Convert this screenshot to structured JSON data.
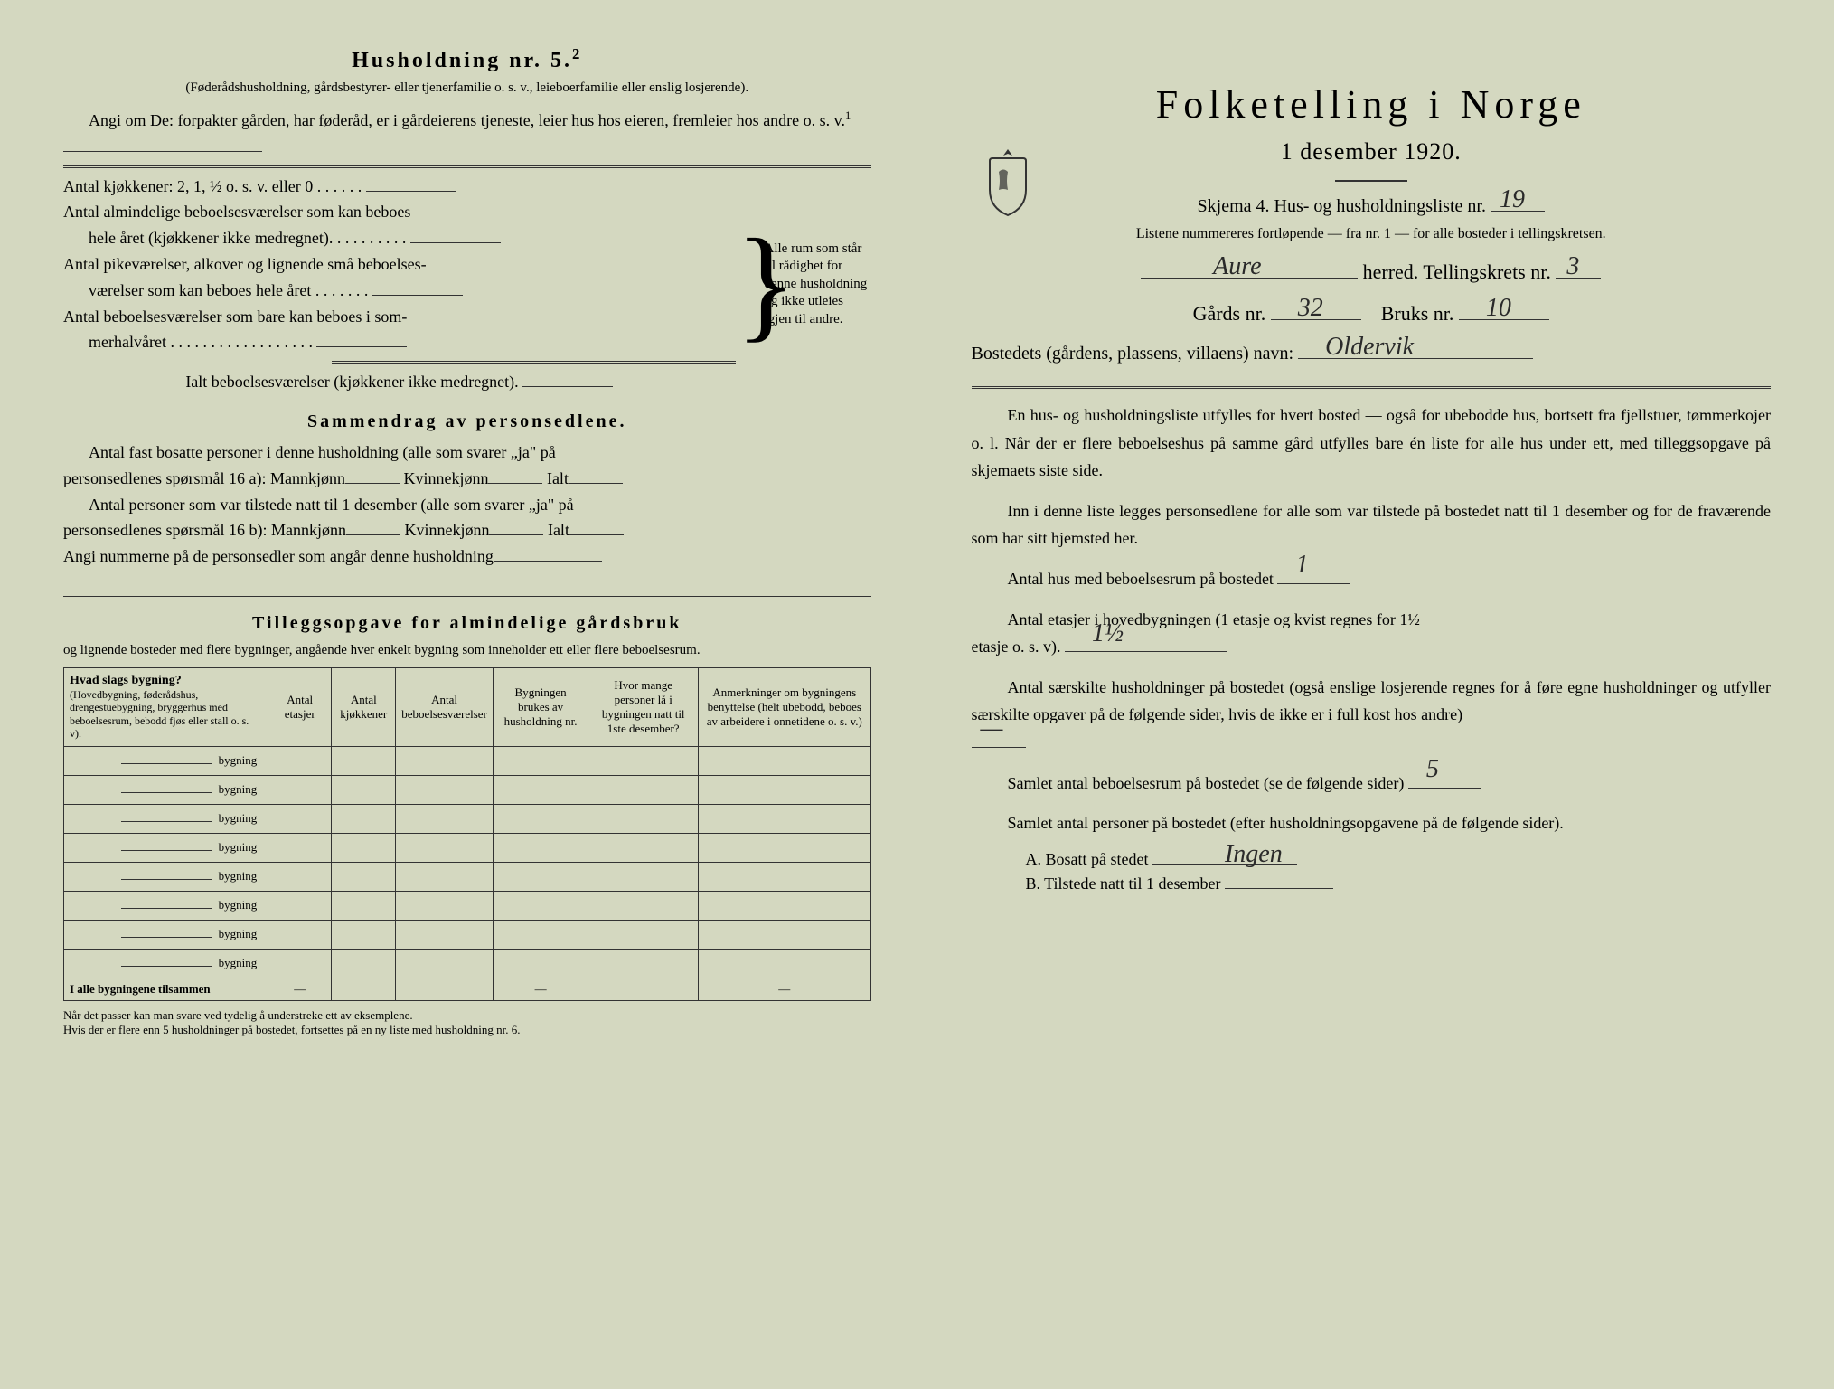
{
  "left": {
    "heading": "Husholdning nr. 5.",
    "heading_sup": "2",
    "intro_paren": "(Føderådshusholdning, gårdsbestyrer- eller tjenerfamilie o. s. v., leieboerfamilie eller enslig losjerende).",
    "angi_line": "Angi om De: forpakter gården, har føderåd, er i gårdeierens tjeneste, leier hus hos eieren, fremleier hos andre o. s. v.",
    "angi_sup": "1",
    "kjokkener_line": "Antal kjøkkener: 2, 1, ½ o. s. v. eller 0",
    "almindelige_line1": "Antal almindelige beboelsesværelser som kan beboes",
    "almindelige_line2": "hele året (kjøkkener ikke medregnet).",
    "pike_line1": "Antal pikeværelser, alkover og lignende små beboelses-",
    "pike_line2": "værelser som kan beboes hele året",
    "sommer_line1": "Antal beboelsesværelser som bare kan beboes i som-",
    "sommer_line2": "merhalvåret",
    "ialt_line": "Ialt beboelsesværelser (kjøkkener ikke medregnet).",
    "brace_text": "Alle rum som står til rådighet for denne husholdning og ikke utleies igjen til andre.",
    "sammendrag_heading": "Sammendrag av personsedlene.",
    "sammendrag_line1a": "Antal fast bosatte personer i denne husholdning (alle som svarer „ja\" på",
    "sammendrag_line1b": "personsedlenes spørsmål 16 a): Mannkjønn",
    "kvinnekjonn": "Kvinnekjønn",
    "ialt": "Ialt",
    "sammendrag_line2a": "Antal personer som var tilstede natt til 1 desember (alle som svarer „ja\" på",
    "sammendrag_line2b": "personsedlenes spørsmål 16 b): Mannkjønn",
    "angi_nummerne": "Angi nummerne på de personsedler som angår denne husholdning",
    "tillegg_heading": "Tilleggsopgave for almindelige gårdsbruk",
    "tillegg_sub": "og lignende bosteder med flere bygninger, angående hver enkelt bygning som inneholder ett eller flere beboelsesrum.",
    "table": {
      "col1_main": "Hvad slags bygning?",
      "col1_sub": "(Hovedbygning, føderådshus, drengestuebygning, bryggerhus med beboelsesrum, bebodd fjøs eller stall o. s. v).",
      "col2": "Antal etasjer",
      "col3": "Antal kjøkkener",
      "col4": "Antal beboelsesværelser",
      "col5": "Bygningen brukes av husholdning nr.",
      "col6": "Hvor mange personer lå i bygningen natt til 1ste desember?",
      "col7": "Anmerkninger om bygningens benyttelse (helt ubebodd, beboes av arbeidere i onnetidene o. s. v.)",
      "bygning": "bygning",
      "footer_row": "I alle bygningene tilsammen",
      "dash": "—"
    },
    "footnote1": "Når det passer kan man svare ved tydelig å understreke ett av eksemplene.",
    "footnote2": "Hvis der er flere enn 5 husholdninger på bostedet, fortsettes på en ny liste med husholdning nr. 6."
  },
  "right": {
    "title": "Folketelling i Norge",
    "subtitle": "1 desember 1920.",
    "skjema_line": "Skjema 4.   Hus- og husholdningsliste nr.",
    "skjema_nr": "19",
    "listene_note": "Listene nummereres fortløpende — fra nr. 1 — for alle bosteder i tellingskretsen.",
    "herred_label": "herred.   Tellingskrets nr.",
    "herred_value": "Aure",
    "krets_nr": "3",
    "gards_label": "Gårds nr.",
    "gards_nr": "32",
    "bruks_label": "Bruks nr.",
    "bruks_nr": "10",
    "bosted_label": "Bostedets (gårdens, plassens, villaens) navn:",
    "bosted_value": "Oldervik",
    "para1": "En hus- og husholdningsliste utfylles for hvert bosted — også for ubebodde hus, bortsett fra fjellstuer, tømmerkojer o. l.  Når der er flere beboelseshus på samme gård utfylles bare én liste for alle hus under ett, med tilleggsopgave på skjemaets siste side.",
    "para2": "Inn i denne liste legges personsedlene for alle som var tilstede på bostedet natt til 1 desember og for de fraværende som har sitt hjemsted her.",
    "antal_hus": "Antal hus med beboelsesrum på bostedet",
    "antal_hus_val": "1",
    "antal_etasjer1": "Antal etasjer i hovedbygningen (1 etasje og kvist regnes for 1½",
    "antal_etasjer2": "etasje o. s. v).",
    "etasjer_val": "1½",
    "antal_hush": "Antal særskilte husholdninger på bostedet (også enslige losjerende regnes for å føre egne husholdninger og utfyller særskilte opgaver på de følgende sider, hvis de ikke er i full kost hos andre)",
    "hush_val": "—",
    "samlet_rum": "Samlet antal beboelsesrum på bostedet (se de følgende sider)",
    "samlet_rum_val": "5",
    "samlet_pers": "Samlet antal personer på bostedet (efter husholdningsopgavene på de følgende sider).",
    "bosatt_label": "A.  Bosatt på stedet",
    "bosatt_val": "Ingen",
    "tilstede_label": "B.  Tilstede natt til 1 desember"
  }
}
